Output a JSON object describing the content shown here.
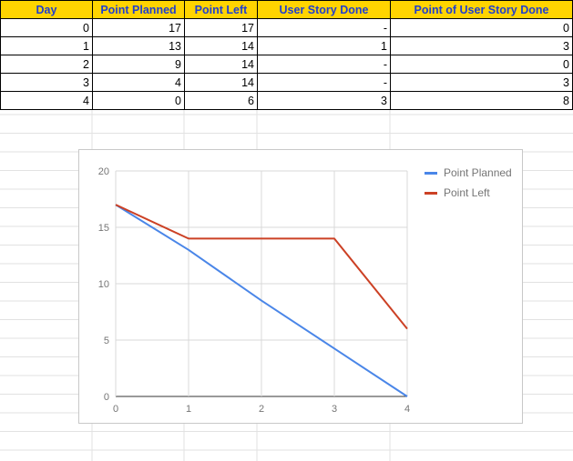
{
  "sheet": {
    "headers": [
      "Day",
      "Point Planned",
      "Point Left",
      "User Story Done",
      "Point of User Story Done"
    ],
    "rows": [
      [
        "0",
        "17",
        "17",
        "-",
        "0"
      ],
      [
        "1",
        "13",
        "14",
        "1",
        "3"
      ],
      [
        "2",
        "9",
        "14",
        "-",
        "0"
      ],
      [
        "3",
        "4",
        "14",
        "-",
        "3"
      ],
      [
        "4",
        "0",
        "6",
        "3",
        "8"
      ]
    ]
  },
  "colors": {
    "header_bg": "#ffd400",
    "header_text": "#1f3fd0",
    "planned": "#4a86e8",
    "left": "#cc4125"
  },
  "chart_data": {
    "type": "line",
    "x": [
      0,
      1,
      2,
      3,
      4
    ],
    "series": [
      {
        "name": "Point Planned",
        "values": [
          17,
          13,
          8.5,
          4.25,
          0
        ]
      },
      {
        "name": "Point Left",
        "values": [
          17,
          14,
          14,
          14,
          6
        ]
      }
    ],
    "xticks": [
      "0",
      "1",
      "2",
      "3",
      "4"
    ],
    "yticks": [
      "0",
      "5",
      "10",
      "15",
      "20"
    ],
    "xlim": [
      0,
      4
    ],
    "ylim": [
      0,
      20
    ],
    "grid": true,
    "legend": "top-right",
    "title": "",
    "xlabel": "",
    "ylabel": ""
  }
}
